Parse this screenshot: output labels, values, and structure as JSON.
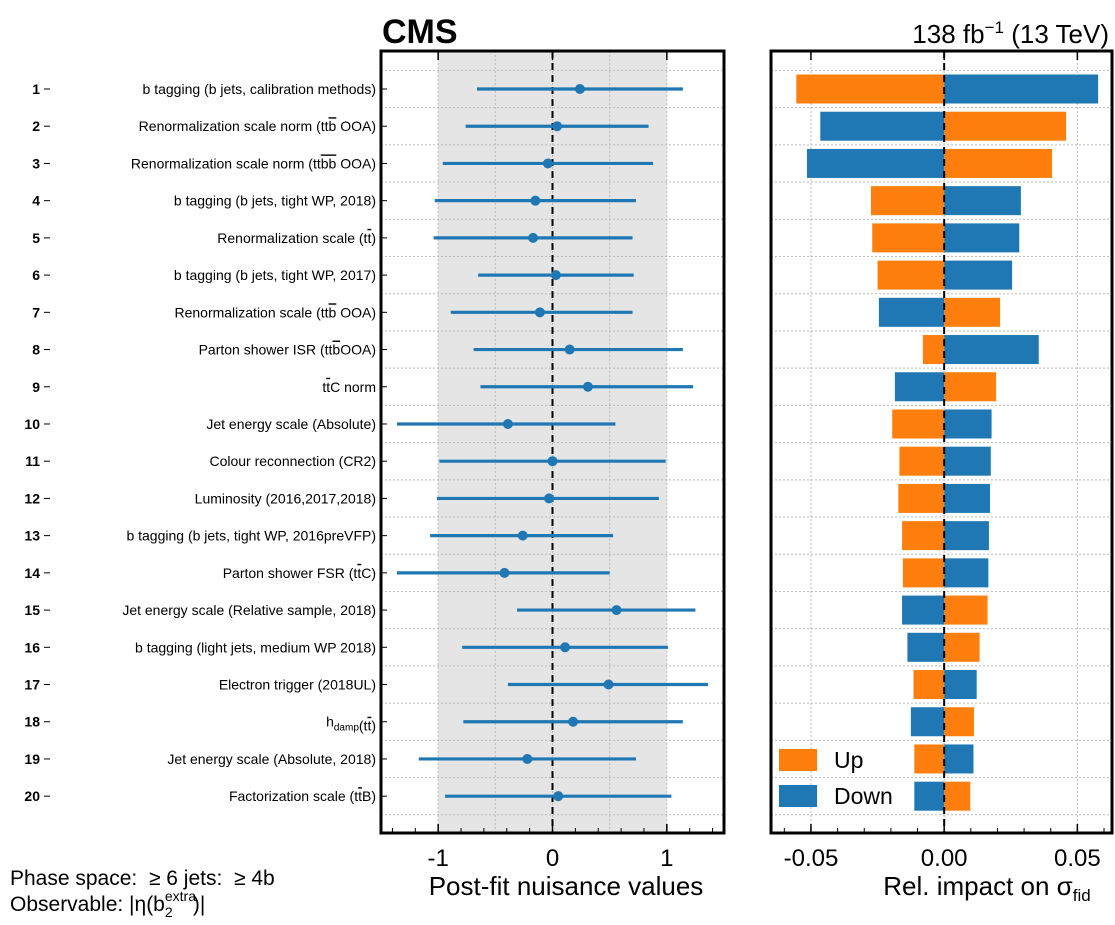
{
  "header": {
    "experiment": "CMS",
    "lumi_value": "138 fb",
    "lumi_exponent": "−1",
    "lumi_energy": " (13 TeV)"
  },
  "info": {
    "phase_space_label": "Phase space:",
    "phase_space_jets": "≥ 6 jets:",
    "phase_space_b": "≥ 4b",
    "observable_label": "Observable: |η(b",
    "observable_sub": "2",
    "observable_sup": "extra",
    "observable_close": ")|"
  },
  "colors": {
    "pull": "#1f77b4",
    "up": "#ff7f0e",
    "down": "#1f77b4",
    "band": "#e5e5e5",
    "grid": "#bbbbbb"
  },
  "chart_data": [
    {
      "type": "scatter",
      "xlabel": "Post-fit nuisance values",
      "xlim": [
        -1.5,
        1.5
      ],
      "xticks": [
        -1,
        0,
        1
      ],
      "xtick_labels": [
        "-1",
        "0",
        "1"
      ],
      "band": [
        -1,
        1
      ],
      "grid": true,
      "rank_labels": [
        "1",
        "2",
        "3",
        "4",
        "5",
        "6",
        "7",
        "8",
        "9",
        "10",
        "11",
        "12",
        "13",
        "14",
        "15",
        "16",
        "17",
        "18",
        "19",
        "20"
      ],
      "nuisances": [
        {
          "base": "b tagging (b jets, calibration methods)"
        },
        {
          "base": "Renormalization scale norm (tt",
          "bar": "b",
          "tail": " OOA)"
        },
        {
          "base": "Renormalization scale norm (tt",
          "bar": "bb",
          "tail": " OOA)"
        },
        {
          "base": "b tagging (b jets, tight WP, 2018)"
        },
        {
          "base": "Renormalization scale (t",
          "bar": "t",
          "tail": ")"
        },
        {
          "base": "b tagging (b jets, tight WP, 2017)"
        },
        {
          "base": "Renormalization scale (tt",
          "bar": "b",
          "tail": " OOA)"
        },
        {
          "base": "Parton shower ISR (tt",
          "bar": "b",
          "tail": "OOA)"
        },
        {
          "base": "t",
          "bar": "t",
          "tail": "C norm"
        },
        {
          "base": "Jet energy scale (Absolute)"
        },
        {
          "base": "Colour reconnection (CR2)"
        },
        {
          "base": "Luminosity (2016,2017,2018)"
        },
        {
          "base": "b tagging (b jets, tight WP, 2016preVFP)"
        },
        {
          "base": "Parton shower FSR (t",
          "bar": "t",
          "tail": "C)"
        },
        {
          "base": "Jet energy scale (Relative sample, 2018)"
        },
        {
          "base": "b tagging (light jets, medium WP 2018)"
        },
        {
          "base": "Electron trigger (2018UL)"
        },
        {
          "base": "h",
          "sub": "damp",
          "mid": "(t",
          "bar": "t",
          "tail": ")"
        },
        {
          "base": "Jet energy scale (Absolute, 2018)"
        },
        {
          "base": "Factorization scale (t",
          "bar": "t",
          "tail": "B)"
        }
      ],
      "pulls": [
        0.24,
        0.04,
        -0.04,
        -0.15,
        -0.17,
        0.03,
        -0.11,
        0.15,
        0.31,
        -0.39,
        0.0,
        -0.03,
        -0.26,
        -0.42,
        0.56,
        0.11,
        0.49,
        0.18,
        -0.22,
        0.05
      ],
      "err_lo": [
        0.9,
        0.8,
        0.92,
        0.88,
        0.87,
        0.68,
        0.78,
        0.84,
        0.94,
        0.97,
        0.99,
        0.98,
        0.81,
        0.94,
        0.87,
        0.9,
        0.88,
        0.96,
        0.95,
        0.99
      ],
      "err_hi": [
        0.9,
        0.8,
        0.92,
        0.88,
        0.87,
        0.68,
        0.81,
        0.99,
        0.92,
        0.94,
        0.99,
        0.96,
        0.79,
        0.92,
        0.69,
        0.9,
        0.87,
        0.96,
        0.95,
        0.99
      ]
    },
    {
      "type": "bar",
      "xlabel": "Rel. impact on σ",
      "xlabel_sub": "fid",
      "xlim": [
        -0.065,
        0.063
      ],
      "xticks": [
        -0.05,
        0.0,
        0.05
      ],
      "xtick_labels": [
        "-0.05",
        "0.00",
        "0.05"
      ],
      "grid": true,
      "legend_position": "lower-left",
      "series": [
        {
          "name": "Up",
          "values": [
            -0.0555,
            0.0458,
            0.0405,
            -0.0275,
            -0.027,
            -0.025,
            0.021,
            -0.008,
            0.0195,
            -0.0195,
            -0.0168,
            -0.0172,
            -0.0158,
            -0.0155,
            0.0163,
            0.0133,
            -0.0115,
            0.0112,
            -0.0112,
            0.0098
          ]
        },
        {
          "name": "Down",
          "values": [
            0.0578,
            -0.0465,
            -0.0515,
            0.0288,
            0.0282,
            0.0255,
            -0.0245,
            0.0355,
            -0.0185,
            0.0178,
            0.0175,
            0.0172,
            0.0168,
            0.0166,
            -0.0158,
            -0.0138,
            0.0122,
            -0.0125,
            0.011,
            -0.0112
          ]
        }
      ]
    }
  ]
}
